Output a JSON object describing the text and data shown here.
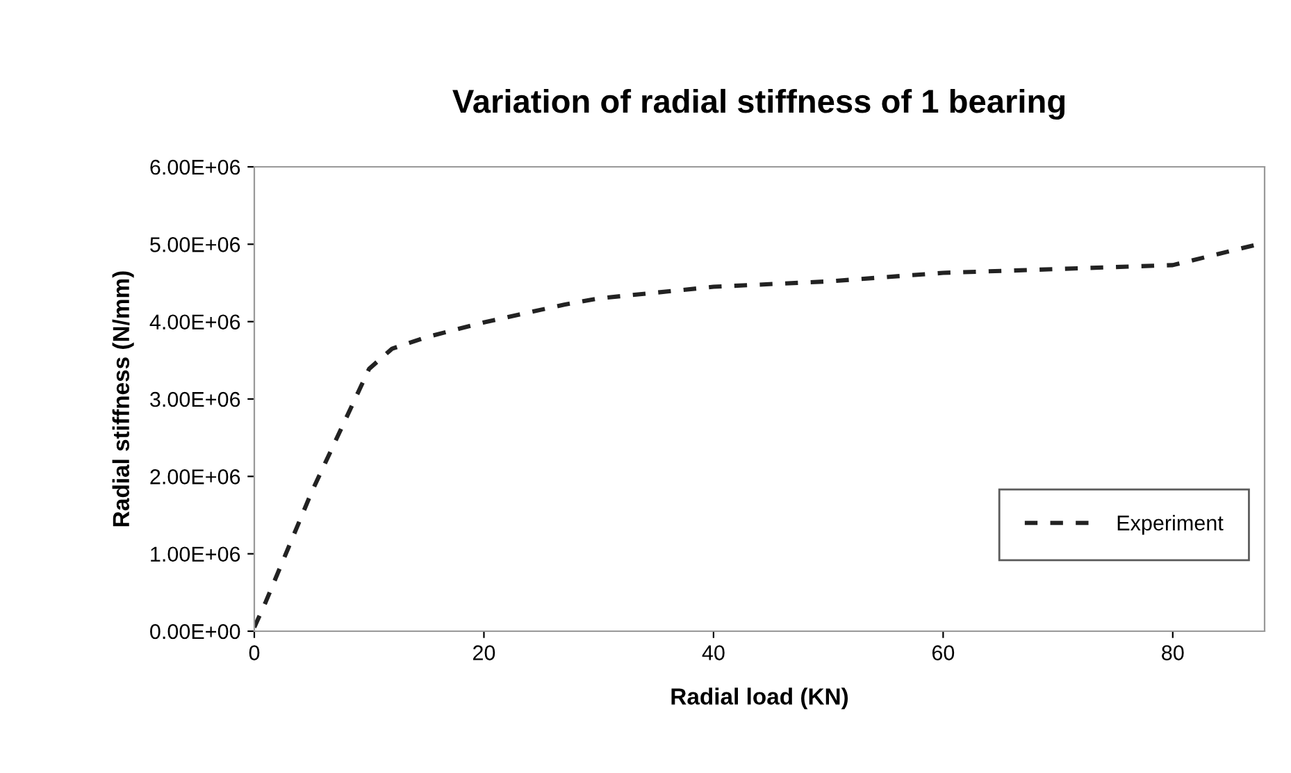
{
  "chart_data": {
    "type": "line",
    "title": "Variation of radial stiffness of 1 bearing",
    "xlabel": "Radial load (KN)",
    "ylabel": "Radial stiffness (N/mm)",
    "series": [
      {
        "name": "Experiment",
        "color": "#222222",
        "line_style": "dashed",
        "x": [
          0,
          1,
          5,
          10,
          12,
          15,
          20,
          27,
          30,
          40,
          50,
          60,
          70,
          80,
          88
        ],
        "values": [
          50000,
          380000,
          1800000,
          3390000,
          3650000,
          3800000,
          3990000,
          4220000,
          4300000,
          4450000,
          4520000,
          4630000,
          4680000,
          4730000,
          5020000
        ]
      }
    ],
    "xlim": [
      0,
      88
    ],
    "xticks": [
      0,
      20,
      40,
      60,
      80
    ],
    "ylim": [
      0,
      6000000
    ],
    "yticks": [
      {
        "value": 0,
        "label": "0.00E+00"
      },
      {
        "value": 1000000,
        "label": "1.00E+06"
      },
      {
        "value": 2000000,
        "label": "2.00E+06"
      },
      {
        "value": 3000000,
        "label": "3.00E+06"
      },
      {
        "value": 4000000,
        "label": "4.00E+06"
      },
      {
        "value": 5000000,
        "label": "5.00E+06"
      },
      {
        "value": 6000000,
        "label": "6.00E+06"
      }
    ],
    "grid": false,
    "legend": "bottom right",
    "marker": "none"
  }
}
